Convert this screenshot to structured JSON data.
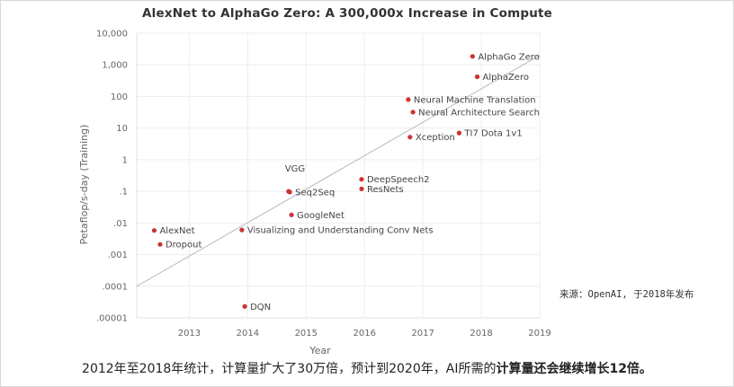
{
  "chart_data": {
    "type": "scatter",
    "title": "AlexNet to AlphaGo Zero: A 300,000x Increase in Compute",
    "xlabel": "Year",
    "ylabel": "Petaflop/s-day (Training)",
    "xlim": [
      2012.1,
      2019
    ],
    "ylim": [
      1e-05,
      10000
    ],
    "y_scale": "log",
    "x_ticks": [
      "2013",
      "2014",
      "2015",
      "2016",
      "2017",
      "2018",
      "2019"
    ],
    "y_ticks": [
      "10,000",
      "1,000",
      "100",
      "10",
      "1",
      ".1",
      ".01",
      ".001",
      ".0001",
      ".00001"
    ],
    "grid": true,
    "point_color": "#cc3333",
    "trend_line": {
      "x": [
        2012.1,
        2019
      ],
      "y": [
        0.0001,
        2000
      ],
      "color": "#b8b8c8"
    },
    "points": [
      {
        "label": "AlexNet",
        "x": 2012.4,
        "y": 0.0058
      },
      {
        "label": "Dropout",
        "x": 2012.5,
        "y": 0.0021
      },
      {
        "label": "DQN",
        "x": 2013.95,
        "y": 2.3e-05
      },
      {
        "label": "Visualizing and Understanding Conv Nets",
        "x": 2013.9,
        "y": 0.006
      },
      {
        "label": "GoogleNet",
        "x": 2014.75,
        "y": 0.018
      },
      {
        "label": "VGG",
        "x": 2014.7,
        "y": 0.1
      },
      {
        "label": "Seq2Seq",
        "x": 2014.72,
        "y": 0.095
      },
      {
        "label": "DeepSpeech2",
        "x": 2015.95,
        "y": 0.24
      },
      {
        "label": "ResNets",
        "x": 2015.95,
        "y": 0.12
      },
      {
        "label": "Neural Machine Translation",
        "x": 2016.75,
        "y": 80
      },
      {
        "label": "Neural Architecture Search",
        "x": 2016.83,
        "y": 32
      },
      {
        "label": "Xception",
        "x": 2016.78,
        "y": 5.2
      },
      {
        "label": "TI7 Dota 1v1",
        "x": 2017.62,
        "y": 7
      },
      {
        "label": "AlphaZero",
        "x": 2017.93,
        "y": 420
      },
      {
        "label": "AlphaGo Zero",
        "x": 2017.85,
        "y": 1850
      }
    ]
  },
  "source_note": "来源：OpenAI, 于2018年发布",
  "caption": {
    "text_plain": "2012年至2018年统计，计算量扩大了30万倍，预计到2020年，AI所需的",
    "text_bold": "计算量还会继续增长12倍。"
  }
}
